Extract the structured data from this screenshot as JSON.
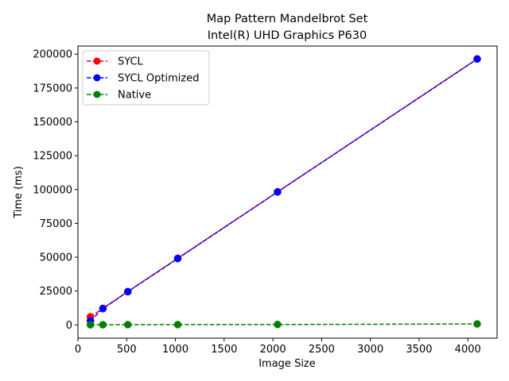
{
  "chart_data": {
    "type": "line",
    "title": "Map Pattern Mandelbrot Set",
    "subtitle": "Intel(R) UHD Graphics P630",
    "xlabel": "Image Size",
    "ylabel": "Time (ms)",
    "xlim": [
      0,
      4300
    ],
    "ylim": [
      -9800,
      206000
    ],
    "xticks": [
      0,
      500,
      1000,
      1500,
      2000,
      2500,
      3000,
      3500,
      4000
    ],
    "yticks": [
      0,
      25000,
      50000,
      75000,
      100000,
      125000,
      150000,
      175000,
      200000
    ],
    "x": [
      128,
      256,
      512,
      1024,
      2048,
      4096
    ],
    "series": [
      {
        "name": "SYCL",
        "color": "#ff0000",
        "linestyle": "dashed",
        "marker": "circle",
        "values": [
          6000,
          12200,
          24600,
          49200,
          98300,
          196500
        ]
      },
      {
        "name": "SYCL Optimized",
        "color": "#0000ff",
        "linestyle": "dashed",
        "marker": "circle",
        "values": [
          3000,
          12000,
          24500,
          49000,
          98200,
          196400
        ]
      },
      {
        "name": "Native",
        "color": "#008000",
        "linestyle": "dashed",
        "marker": "circle",
        "values": [
          50,
          100,
          150,
          200,
          300,
          700
        ]
      }
    ],
    "grid": false,
    "legend": "top-left"
  }
}
